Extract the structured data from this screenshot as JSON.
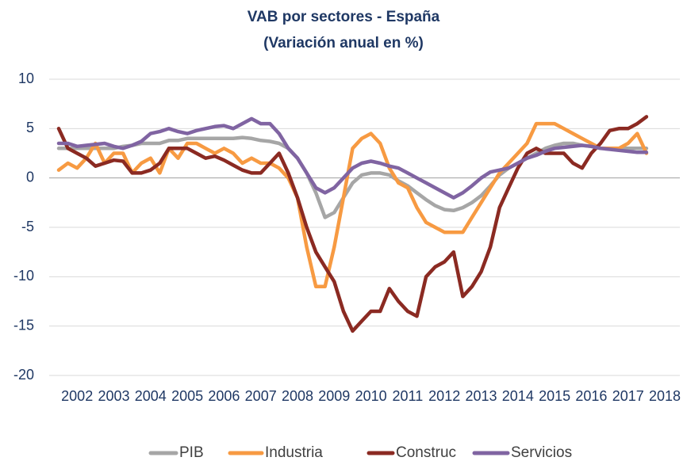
{
  "chart_data": {
    "type": "line",
    "title": "VAB por sectores - España",
    "subtitle": "(Variación anual en %)",
    "x": [
      2001.5,
      2001.75,
      2002,
      2002.25,
      2002.5,
      2002.75,
      2003,
      2003.25,
      2003.5,
      2003.75,
      2004,
      2004.25,
      2004.5,
      2004.75,
      2005,
      2005.25,
      2005.5,
      2005.75,
      2006,
      2006.25,
      2006.5,
      2006.75,
      2007,
      2007.25,
      2007.5,
      2007.75,
      2008,
      2008.25,
      2008.5,
      2008.75,
      2009,
      2009.25,
      2009.5,
      2009.75,
      2010,
      2010.25,
      2010.5,
      2010.75,
      2011,
      2011.25,
      2011.5,
      2011.75,
      2012,
      2012.25,
      2012.5,
      2012.75,
      2013,
      2013.25,
      2013.5,
      2013.75,
      2014,
      2014.25,
      2014.5,
      2014.75,
      2015,
      2015.25,
      2015.5,
      2015.75,
      2016,
      2016.25,
      2016.5,
      2016.75,
      2017,
      2017.25,
      2017.5
    ],
    "series": [
      {
        "name": "PIB",
        "color": "#a6a6a6",
        "values": [
          3,
          3,
          3,
          3,
          3,
          3,
          3,
          3.2,
          3.3,
          3.5,
          3.5,
          3.5,
          3.8,
          3.8,
          4,
          4,
          4,
          4,
          4,
          4,
          4.1,
          4,
          3.8,
          3.7,
          3.5,
          3,
          2,
          0.5,
          -1.5,
          -4,
          -3.5,
          -2,
          -0.5,
          0.3,
          0.5,
          0.5,
          0.3,
          -0.3,
          -0.8,
          -1.5,
          -2.2,
          -2.8,
          -3.2,
          -3.3,
          -3,
          -2.5,
          -1.8,
          -0.8,
          0.3,
          1,
          1.5,
          2,
          2.5,
          3,
          3.3,
          3.5,
          3.5,
          3.3,
          3.2,
          3,
          3,
          3,
          3,
          3,
          3
        ]
      },
      {
        "name": "Industria",
        "color": "#f79a42",
        "values": [
          0.8,
          1.5,
          1,
          2,
          3.5,
          1.5,
          2.5,
          2.5,
          0.5,
          1.5,
          2,
          0.5,
          3,
          2,
          3.5,
          3.5,
          3,
          2.5,
          3,
          2.5,
          1.5,
          2,
          1.5,
          1.5,
          1,
          0,
          -2,
          -7,
          -11,
          -11,
          -7,
          -2,
          3,
          4,
          4.5,
          3.5,
          1,
          -0.5,
          -1,
          -3,
          -4.5,
          -5,
          -5.5,
          -5.5,
          -5.5,
          -4,
          -2.5,
          -1,
          0.5,
          1.5,
          2.5,
          3.5,
          5.5,
          5.5,
          5.5,
          5,
          4.5,
          4,
          3.5,
          3,
          3,
          3,
          3.5,
          4.5,
          2.5
        ]
      },
      {
        "name": "Construc",
        "color": "#8b2a22",
        "values": [
          5,
          3,
          2.5,
          2,
          1.2,
          1.5,
          1.8,
          1.7,
          0.5,
          0.5,
          0.8,
          1.5,
          3,
          3,
          3,
          2.5,
          2,
          2.2,
          1.8,
          1.3,
          0.8,
          0.5,
          0.5,
          1.5,
          2.5,
          0.5,
          -2,
          -5,
          -7.5,
          -9,
          -10.5,
          -13.5,
          -15.5,
          -14.5,
          -13.5,
          -13.5,
          -11.2,
          -12.5,
          -13.5,
          -14,
          -10,
          -9,
          -8.5,
          -7.5,
          -12,
          -11,
          -9.5,
          -7,
          -3,
          -1,
          1,
          2.5,
          3,
          2.5,
          2.5,
          2.5,
          1.5,
          1,
          2.5,
          3.5,
          4.8,
          5,
          5,
          5.5,
          6.2
        ]
      },
      {
        "name": "Servicios",
        "color": "#8064a2",
        "values": [
          3.5,
          3.5,
          3.2,
          3.3,
          3.4,
          3.5,
          3.2,
          3,
          3.3,
          3.7,
          4.5,
          4.7,
          5,
          4.7,
          4.5,
          4.8,
          5,
          5.2,
          5.3,
          5,
          5.5,
          6,
          5.5,
          5.5,
          4.5,
          3,
          2,
          0.5,
          -1,
          -1.5,
          -1,
          0,
          1,
          1.5,
          1.7,
          1.5,
          1.2,
          1,
          0.5,
          0,
          -0.5,
          -1,
          -1.5,
          -2,
          -1.5,
          -0.8,
          0,
          0.6,
          0.8,
          1,
          1.5,
          2,
          2.3,
          2.7,
          3,
          3.1,
          3.2,
          3.3,
          3.2,
          3,
          2.9,
          2.8,
          2.7,
          2.6,
          2.6
        ]
      }
    ],
    "xlim": [
      2001.24,
      2018.41
    ],
    "xticks": [
      2002,
      2003,
      2004,
      2005,
      2006,
      2007,
      2008,
      2009,
      2010,
      2011,
      2012,
      2013,
      2014,
      2015,
      2016,
      2017,
      2018
    ],
    "ylim": [
      -20,
      10
    ],
    "yticks": [
      -20,
      -15,
      -10,
      -5,
      0,
      5,
      10
    ],
    "grid": true,
    "legend": "bottom"
  }
}
